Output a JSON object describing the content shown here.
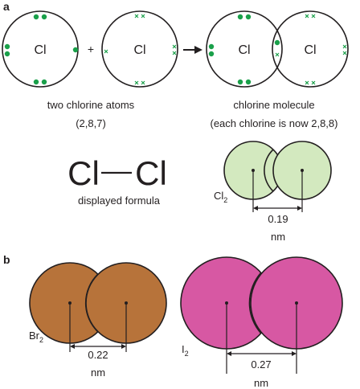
{
  "part_a": {
    "label": "a",
    "symbol": "Cl",
    "plus": "+",
    "left_caption": "two chlorine atoms",
    "left_config": "(2,8,7)",
    "right_caption": "chlorine molecule",
    "right_config": "(each chlorine is now 2,8,8)",
    "formula_left": "Cl",
    "formula_right": "Cl",
    "formula_caption": "displayed formula",
    "cl2_base": "Cl",
    "cl2_sub": "2",
    "cl2_distance": "0.19",
    "cl2_unit": "nm"
  },
  "part_b": {
    "label": "b",
    "br2_base": "Br",
    "br2_sub": "2",
    "br2_distance": "0.22",
    "br2_unit": "nm",
    "i2_base": "I",
    "i2_sub": "2",
    "i2_distance": "0.27",
    "i2_unit": "nm"
  },
  "colors": {
    "electron_dot": "#1aa04a",
    "cl2_fill": "#d3e9bf",
    "br2_fill": "#b7733a",
    "i2_fill": "#d758a3",
    "outline": "#231f20"
  }
}
